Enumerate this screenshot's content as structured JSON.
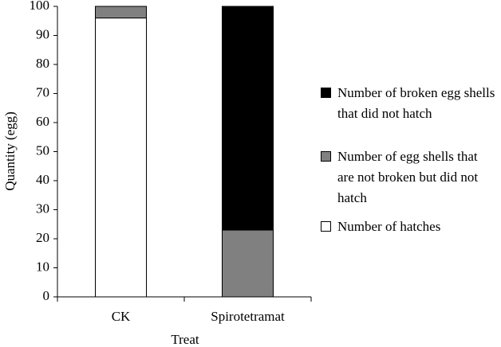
{
  "chart_data": {
    "type": "stacked-bar",
    "x_label": "Treat",
    "y_label": "Quantity (egg)",
    "categories": [
      "CK",
      "Spirotetramat"
    ],
    "series": [
      {
        "name": "Number of hatches",
        "color": "#ffffff",
        "values": [
          96,
          0
        ]
      },
      {
        "name": "Number of egg shells that are not broken but did not hatch",
        "color": "#808080",
        "values": [
          4,
          23
        ]
      },
      {
        "name": "Number of broken egg shells that did not hatch",
        "color": "#000000",
        "values": [
          0,
          77
        ]
      }
    ],
    "ylim": [
      0,
      100
    ],
    "yticks": [
      0,
      10,
      20,
      30,
      40,
      50,
      60,
      70,
      80,
      90,
      100
    ]
  }
}
